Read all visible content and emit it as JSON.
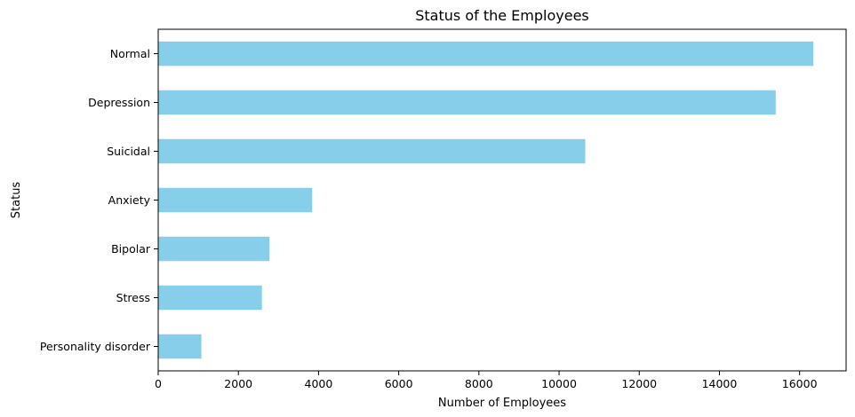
{
  "chart_data": {
    "type": "bar",
    "orientation": "horizontal",
    "title": "Status of the Employees",
    "xlabel": "Number of Employees",
    "ylabel": "Status",
    "categories": [
      "Normal",
      "Depression",
      "Suicidal",
      "Anxiety",
      "Bipolar",
      "Stress",
      "Personality disorder"
    ],
    "values": [
      16343,
      15404,
      10652,
      3841,
      2777,
      2587,
      1077
    ],
    "xlim": [
      0,
      17160
    ],
    "xticks": [
      0,
      2000,
      4000,
      6000,
      8000,
      10000,
      12000,
      14000,
      16000
    ],
    "bar_color": "#87CEEB",
    "grid": false,
    "legend": false
  }
}
